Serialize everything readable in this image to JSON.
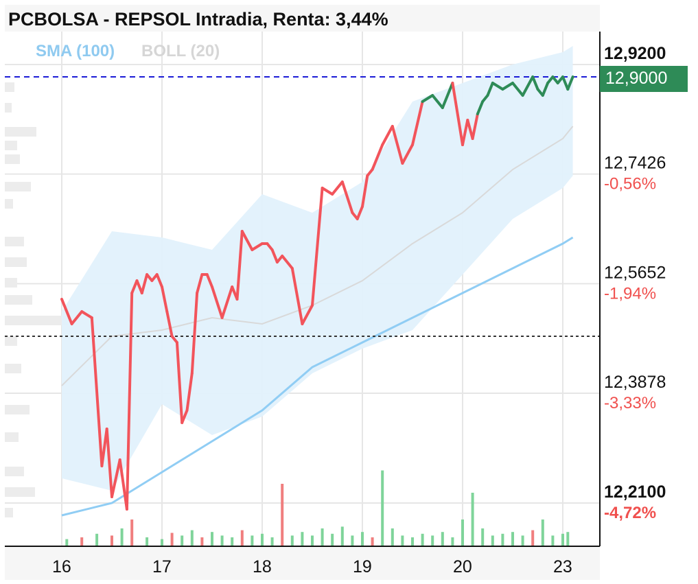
{
  "title": "PCBOLSA - REPSOL Intradia, Renta: 3,44%",
  "legend": {
    "sma": "SMA (100)",
    "boll": "BOLL (20)"
  },
  "current_price_label": "12,9000",
  "y_labels": [
    {
      "price": 12.92,
      "text": "12,9200",
      "pct": "",
      "bold": true
    },
    {
      "price": 12.7426,
      "text": "12,7426",
      "pct": "-0,56%",
      "bold": false
    },
    {
      "price": 12.5652,
      "text": "12,5652",
      "pct": "-1,94%",
      "bold": false
    },
    {
      "price": 12.3878,
      "text": "12,3878",
      "pct": "-3,33%",
      "bold": false
    },
    {
      "price": 12.21,
      "text": "12,2100",
      "pct": "-4,72%",
      "bold": true
    }
  ],
  "x_labels": [
    "16",
    "17",
    "18",
    "19",
    "20",
    "23"
  ],
  "colors": {
    "price_down": "#f2545b",
    "price_up": "#2e8b57",
    "sma": "#90cdf4",
    "boll_band": "#e2f1fc",
    "boll_mid": "#d9d9d9",
    "tag_bg": "#2e8b57",
    "current_line": "#1a1ad6",
    "ref_line": "#333333",
    "volume_up": "#7fd49a",
    "volume_down": "#f07e7e"
  },
  "chart_data": {
    "type": "line",
    "title": "PCBOLSA - REPSOL Intradia, Renta: 3,44%",
    "xlabel": "",
    "ylabel": "",
    "x_ticks": [
      "16",
      "17",
      "18",
      "19",
      "20",
      "23"
    ],
    "ylim": [
      12.2,
      12.97
    ],
    "current_price": 12.9,
    "reference_price": 12.48,
    "grid": true,
    "series": [
      {
        "name": "REPSOL",
        "x": [
          0,
          0.1,
          0.2,
          0.3,
          0.4,
          0.45,
          0.5,
          0.58,
          0.65,
          0.7,
          0.75,
          0.8,
          0.85,
          0.9,
          0.95,
          1.0,
          1.05,
          1.1,
          1.15,
          1.2,
          1.25,
          1.3,
          1.35,
          1.4,
          1.45,
          1.5,
          1.6,
          1.7,
          1.75,
          1.8,
          1.9,
          2.0,
          2.05,
          2.1,
          2.15,
          2.2,
          2.3,
          2.4,
          2.5,
          2.6,
          2.7,
          2.8,
          2.9,
          2.95,
          3.0,
          3.05,
          3.1,
          3.2,
          3.3,
          3.4,
          3.5,
          3.6,
          3.7,
          3.8,
          3.9,
          4.0,
          4.05,
          4.1,
          4.15,
          4.2,
          4.25,
          4.3,
          4.4,
          4.5,
          4.6,
          4.7,
          4.75,
          4.8,
          4.85,
          4.9,
          4.95,
          5.0,
          5.05,
          5.1
        ],
        "y": [
          12.54,
          12.5,
          12.52,
          12.51,
          12.27,
          12.33,
          12.22,
          12.28,
          12.2,
          12.55,
          12.57,
          12.55,
          12.58,
          12.57,
          12.58,
          12.56,
          12.52,
          12.48,
          12.47,
          12.34,
          12.36,
          12.42,
          12.55,
          12.58,
          12.58,
          12.56,
          12.51,
          12.56,
          12.54,
          12.65,
          12.62,
          12.63,
          12.63,
          12.62,
          12.6,
          12.61,
          12.59,
          12.5,
          12.53,
          12.72,
          12.71,
          12.73,
          12.68,
          12.67,
          12.69,
          12.74,
          12.75,
          12.79,
          12.82,
          12.76,
          12.79,
          12.86,
          12.87,
          12.85,
          12.89,
          12.79,
          12.83,
          12.8,
          12.84,
          12.86,
          12.87,
          12.89,
          12.88,
          12.89,
          12.87,
          12.9,
          12.88,
          12.87,
          12.89,
          12.9,
          12.89,
          12.9,
          12.88,
          12.9
        ]
      },
      {
        "name": "SMA (100)",
        "x": [
          0,
          0.5,
          1.0,
          1.5,
          2.0,
          2.5,
          3.0,
          3.5,
          4.0,
          4.5,
          5.0,
          5.1
        ],
        "y": [
          12.19,
          12.21,
          12.26,
          12.31,
          12.36,
          12.43,
          12.47,
          12.51,
          12.55,
          12.59,
          12.63,
          12.64
        ]
      },
      {
        "name": "BOLL (20)",
        "x": [
          0,
          0.5,
          1.0,
          1.5,
          2.0,
          2.5,
          3.0,
          3.5,
          4.0,
          4.5,
          5.0,
          5.1
        ],
        "y": [
          12.4,
          12.48,
          12.49,
          12.51,
          12.5,
          12.53,
          12.57,
          12.63,
          12.68,
          12.75,
          12.8,
          12.82
        ],
        "upper": [
          12.52,
          12.65,
          12.64,
          12.62,
          12.71,
          12.68,
          12.73,
          12.86,
          12.89,
          12.92,
          12.94,
          12.95
        ],
        "lower": [
          12.25,
          12.23,
          12.37,
          12.32,
          12.35,
          12.42,
          12.46,
          12.49,
          12.58,
          12.67,
          12.72,
          12.74
        ]
      }
    ],
    "volume": {
      "x": [
        0.05,
        0.2,
        0.35,
        0.5,
        0.6,
        0.7,
        0.85,
        1.0,
        1.1,
        1.2,
        1.3,
        1.4,
        1.5,
        1.6,
        1.7,
        1.8,
        1.9,
        2.0,
        2.1,
        2.2,
        2.3,
        2.4,
        2.5,
        2.6,
        2.7,
        2.8,
        2.9,
        3.0,
        3.1,
        3.2,
        3.3,
        3.4,
        3.5,
        3.6,
        3.7,
        3.8,
        3.9,
        4.0,
        4.1,
        4.2,
        4.3,
        4.4,
        4.5,
        4.6,
        4.7,
        4.8,
        4.9,
        5.0,
        5.05
      ],
      "values": [
        0.08,
        0.1,
        0.14,
        0.12,
        0.2,
        0.3,
        0.1,
        0.08,
        0.15,
        0.12,
        0.18,
        0.1,
        0.16,
        0.12,
        0.1,
        0.18,
        0.12,
        0.14,
        0.1,
        0.7,
        0.12,
        0.16,
        0.12,
        0.2,
        0.14,
        0.22,
        0.12,
        0.16,
        0.1,
        0.85,
        0.2,
        0.12,
        0.1,
        0.14,
        0.12,
        0.16,
        0.1,
        0.3,
        0.6,
        0.2,
        0.12,
        0.14,
        0.16,
        0.12,
        0.18,
        0.3,
        0.12,
        0.14,
        0.16
      ],
      "up": [
        true,
        false,
        true,
        false,
        true,
        false,
        true,
        true,
        false,
        true,
        true,
        false,
        true,
        true,
        true,
        false,
        true,
        true,
        true,
        false,
        true,
        true,
        true,
        true,
        true,
        true,
        true,
        true,
        false,
        true,
        true,
        true,
        true,
        true,
        true,
        true,
        true,
        true,
        true,
        true,
        true,
        true,
        true,
        true,
        false,
        true,
        true,
        true,
        true
      ]
    }
  }
}
